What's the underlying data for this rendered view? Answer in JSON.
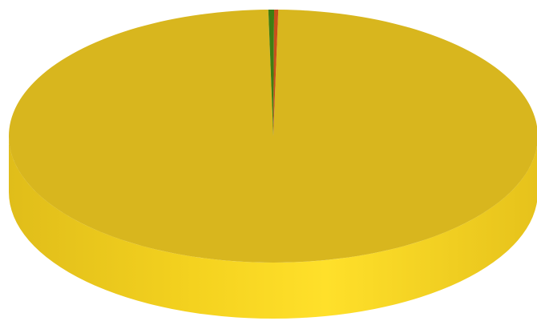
{
  "chart_data": {
    "type": "pie",
    "style": "3d",
    "legend": "none",
    "slices": [
      {
        "value": 99.4,
        "color": "#d8b61e",
        "side_color": "#f2cf1f"
      },
      {
        "value": 0.35,
        "color": "#3f7d12",
        "side_color": "#4a8f16"
      },
      {
        "value": 0.25,
        "color": "#c8501a",
        "side_color": "#d65c1e"
      }
    ]
  }
}
